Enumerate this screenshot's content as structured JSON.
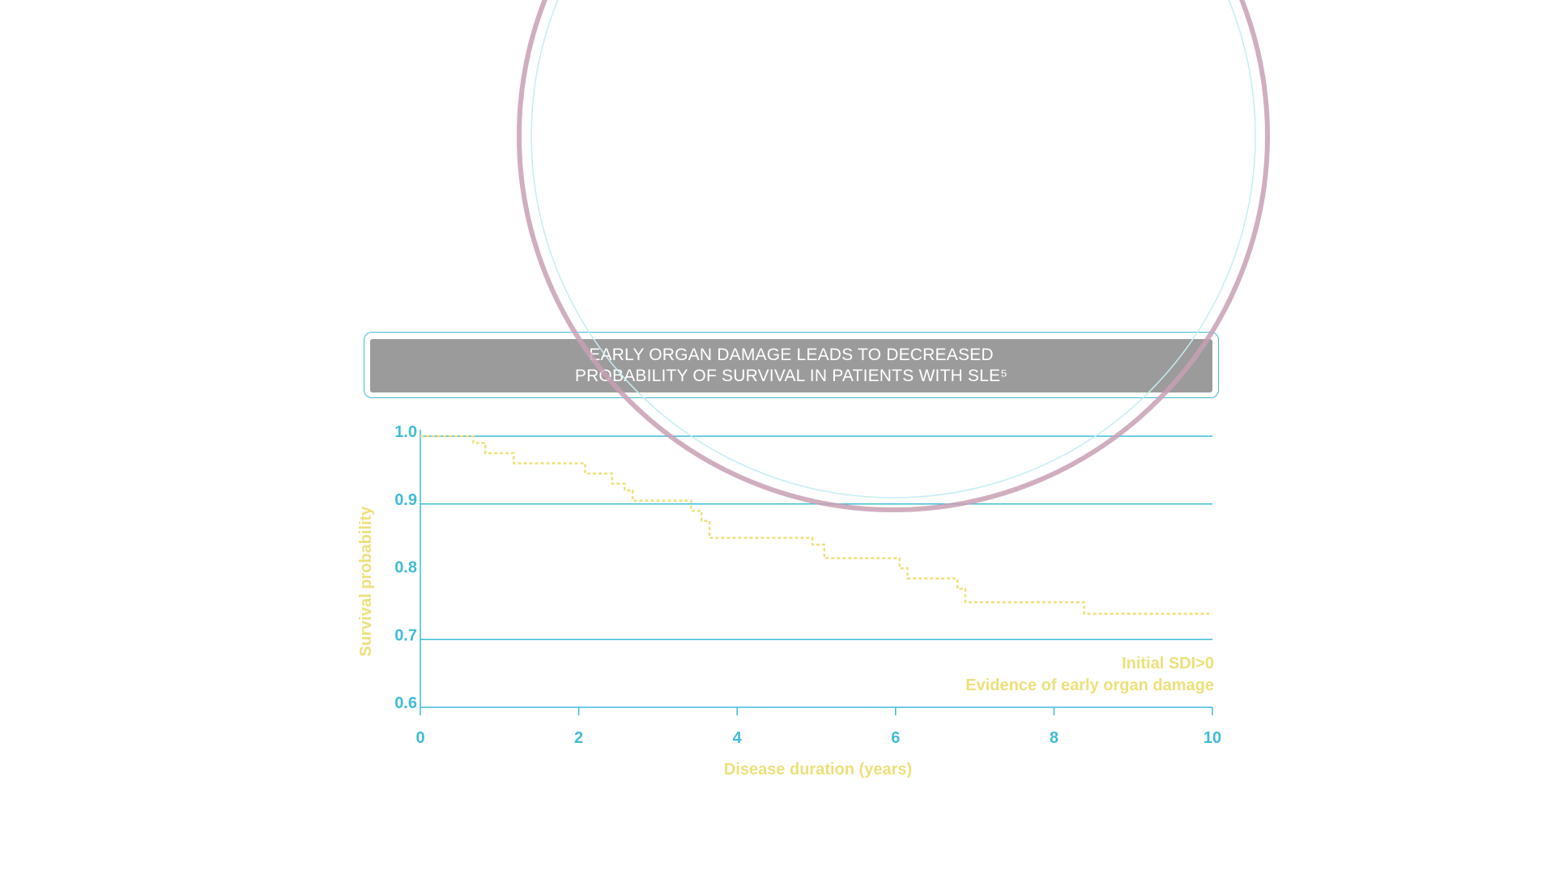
{
  "colors": {
    "axis": "#3fbcd8",
    "series": "#ede07a",
    "title_bg": "#9b9b9b",
    "title_text": "#ffffff",
    "ring_outer": "#c8a0b4",
    "ring_inner": "#c4eef2"
  },
  "chart_data": {
    "type": "line",
    "subtype": "kaplan-meier step",
    "title_lines": [
      "EARLY ORGAN DAMAGE LEADS TO DECREASED",
      "PROBABILITY OF SURVIVAL IN PATIENTS WITH SLE⁵"
    ],
    "xlabel": "Disease duration (years)",
    "ylabel": "Survival probability",
    "xlim": [
      0,
      10
    ],
    "ylim": [
      0.6,
      1.0
    ],
    "x_ticks": [
      0,
      2,
      4,
      6,
      8,
      10
    ],
    "x_tick_labels": [
      "0",
      "2",
      "4",
      "6",
      "8",
      "10"
    ],
    "y_ticks": [
      0.6,
      0.7,
      0.8,
      0.9,
      1.0
    ],
    "y_tick_labels": [
      "0.6",
      "0.7",
      "0.8",
      "0.9",
      "1.0"
    ],
    "grid": {
      "y_lines": [
        0.7,
        0.9,
        1.0
      ]
    },
    "series": [
      {
        "name": "Initial SDI>0",
        "description": "Evidence of early organ damage",
        "style": "dotted",
        "steps": [
          [
            0.0,
            1.0
          ],
          [
            0.67,
            0.99
          ],
          [
            0.82,
            0.975
          ],
          [
            1.18,
            0.96
          ],
          [
            2.08,
            0.945
          ],
          [
            2.42,
            0.93
          ],
          [
            2.58,
            0.92
          ],
          [
            2.68,
            0.905
          ],
          [
            3.42,
            0.89
          ],
          [
            3.55,
            0.875
          ],
          [
            3.65,
            0.85
          ],
          [
            4.95,
            0.84
          ],
          [
            5.1,
            0.82
          ],
          [
            6.05,
            0.805
          ],
          [
            6.15,
            0.79
          ],
          [
            6.78,
            0.775
          ],
          [
            6.88,
            0.755
          ],
          [
            8.38,
            0.738
          ],
          [
            10.0,
            0.738
          ]
        ]
      }
    ],
    "legend": {
      "position": "bottom-right",
      "lines": [
        "Initial SDI>0",
        "Evidence of early organ damage"
      ]
    }
  }
}
